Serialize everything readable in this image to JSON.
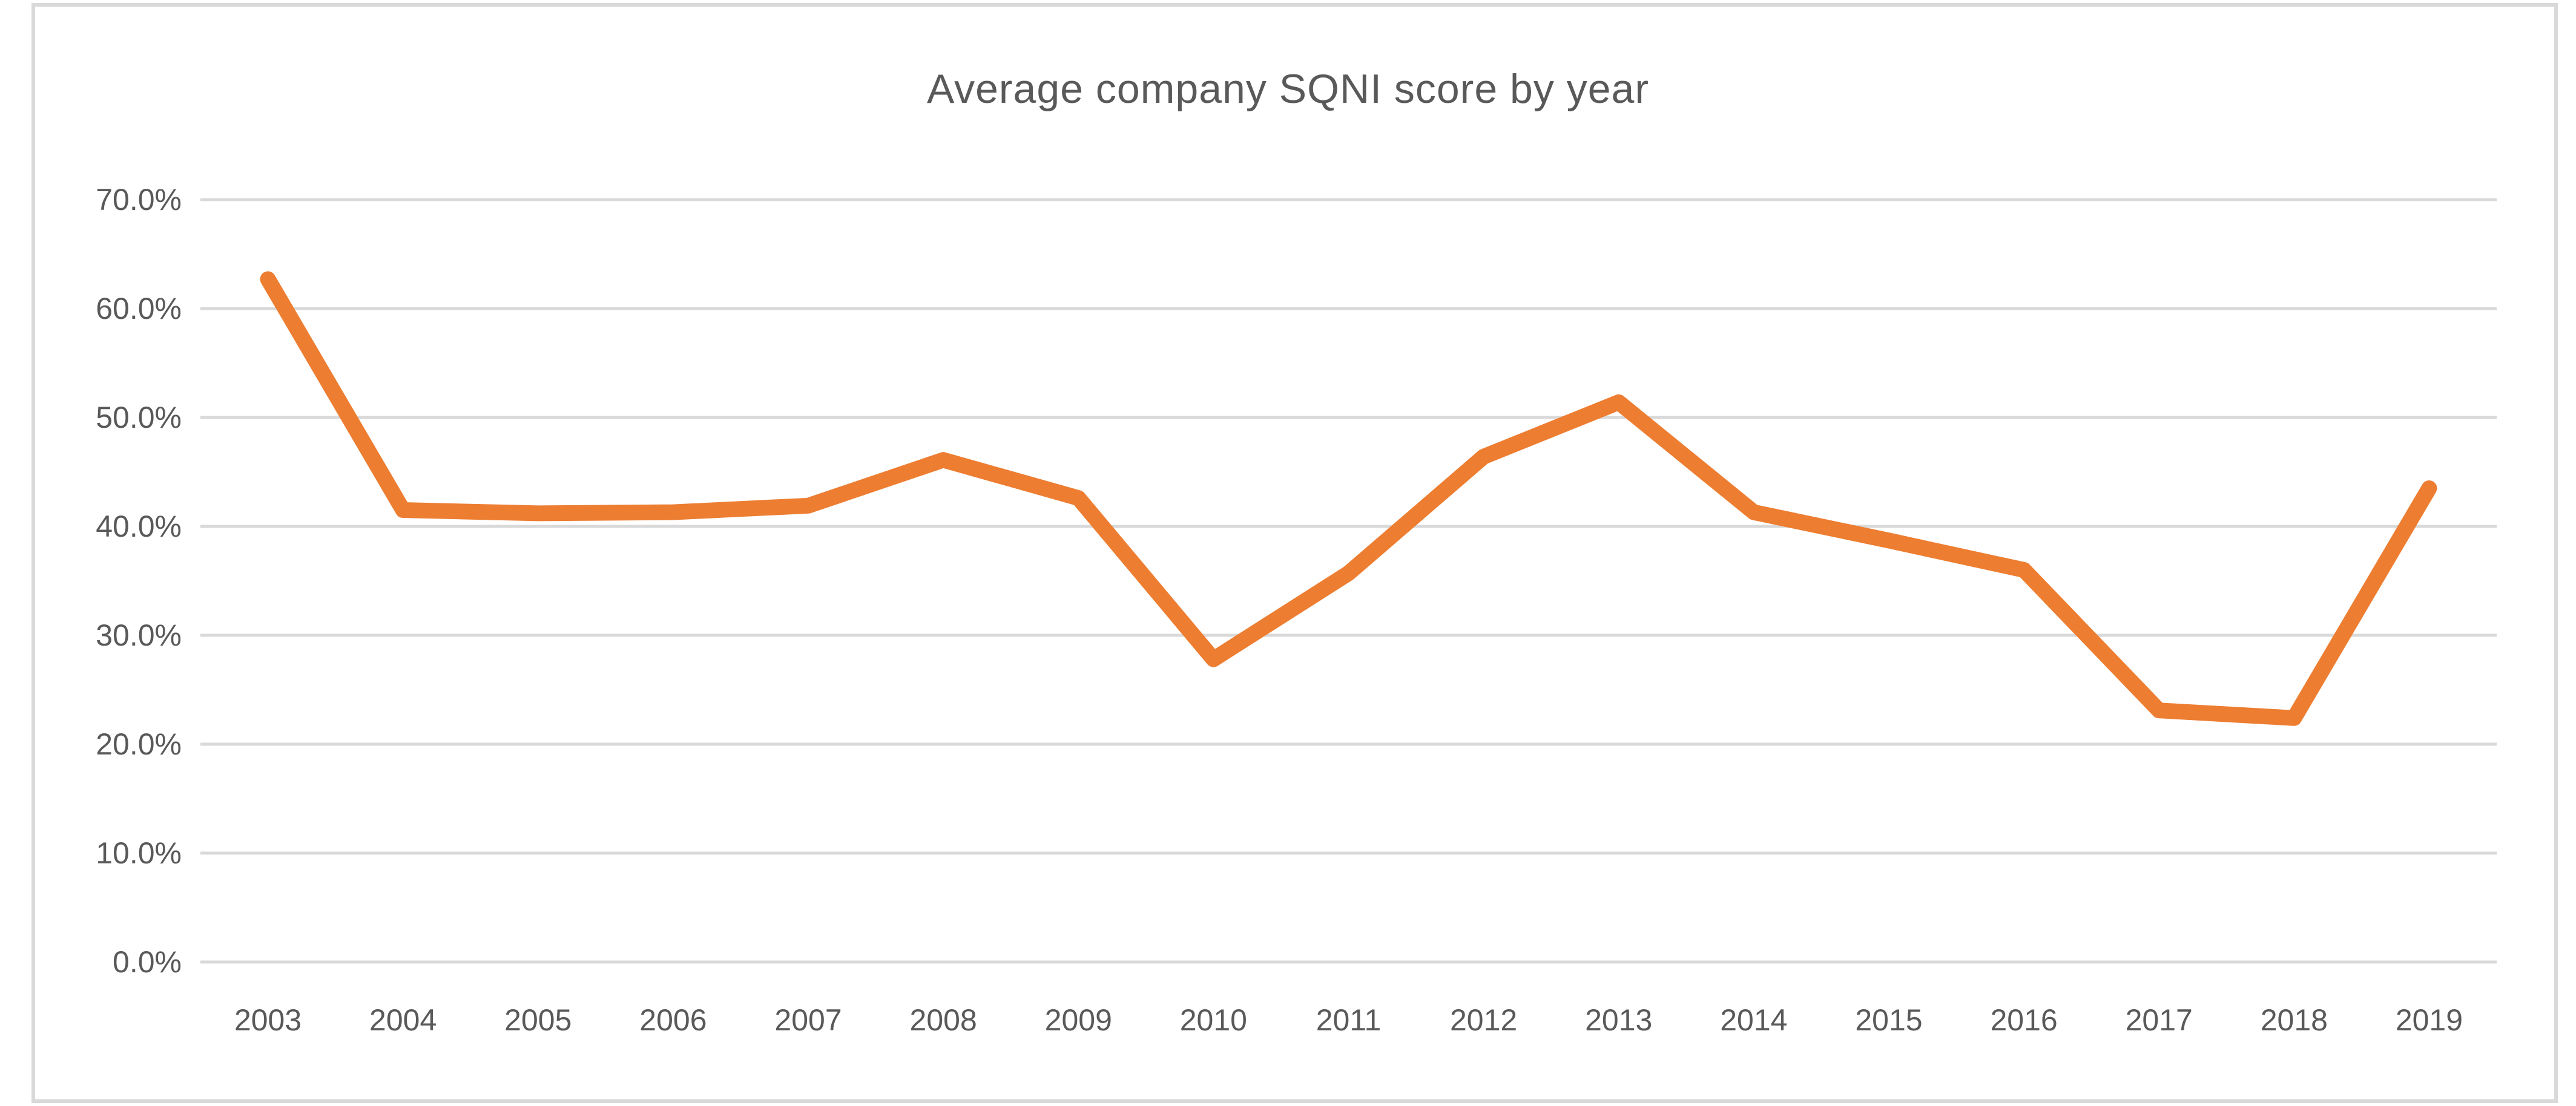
{
  "chart_data": {
    "type": "line",
    "title": "Average company SQNI score by year",
    "categories": [
      "2003",
      "2004",
      "2005",
      "2006",
      "2007",
      "2008",
      "2009",
      "2010",
      "2011",
      "2012",
      "2013",
      "2014",
      "2015",
      "2016",
      "2017",
      "2018",
      "2019"
    ],
    "series": [
      {
        "name": "Average company SQNI score",
        "values": [
          62.7,
          41.5,
          41.2,
          41.3,
          41.9,
          46.1,
          42.6,
          27.8,
          35.7,
          46.4,
          51.4,
          41.3,
          38.7,
          36.0,
          23.1,
          22.4,
          43.5
        ]
      }
    ],
    "unit": "%",
    "xlabel": "",
    "ylabel": "",
    "ylim": [
      0,
      70
    ],
    "ytick_step": 10,
    "ytick_labels": [
      "0.0%",
      "10.0%",
      "20.0%",
      "30.0%",
      "40.0%",
      "50.0%",
      "60.0%",
      "70.0%"
    ],
    "grid": "horizontal-only",
    "legend_position": "none",
    "colors": {
      "line": "#ED7D31",
      "gridline": "#D9D9D9",
      "chart_border": "#D9D9D9",
      "text": "#595959",
      "background": "#FFFFFF"
    }
  }
}
